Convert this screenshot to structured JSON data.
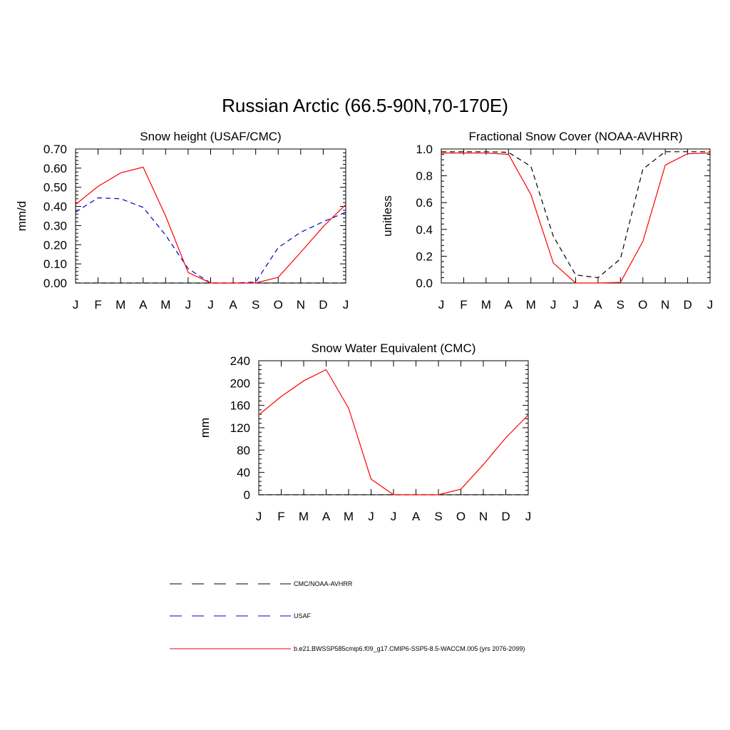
{
  "figure": {
    "title": "Russian Arctic (66.5-90N,70-170E)"
  },
  "legend": {
    "items": [
      {
        "label": "CMC/NOAA-AVHRR",
        "color": "#000000",
        "style": "dashed"
      },
      {
        "label": "USAF",
        "color": "#0000cc",
        "style": "dashed"
      },
      {
        "label": "b.e21.BWSSP585cmip6.f09_g17.CMIP6-SSP5-8.5-WACCM.005 (yrs 2076-2099)",
        "color": "#ff0000",
        "style": "solid"
      }
    ]
  },
  "chart_data": [
    {
      "type": "line",
      "title": "Snow height (USAF/CMC)",
      "xlabel": "",
      "ylabel": "mm/d",
      "categories": [
        "J",
        "F",
        "M",
        "A",
        "M",
        "J",
        "J",
        "A",
        "S",
        "O",
        "N",
        "D",
        "J"
      ],
      "ylim": [
        0,
        0.7
      ],
      "yticks": [
        "0.00",
        "0.10",
        "0.20",
        "0.30",
        "0.40",
        "0.50",
        "0.60",
        "0.70"
      ],
      "series": [
        {
          "name": "CMC/NOAA-AVHRR",
          "color": "#000000",
          "style": "dashed",
          "values": [
            0,
            0,
            0,
            0,
            0,
            0,
            0,
            0,
            0,
            0,
            0,
            0,
            0
          ]
        },
        {
          "name": "USAF",
          "color": "#0000cc",
          "style": "dashed",
          "values": [
            0.37,
            0.445,
            0.44,
            0.395,
            0.25,
            0.075,
            0,
            0,
            0.005,
            0.185,
            0.265,
            0.32,
            0.37
          ]
        },
        {
          "name": "b.e21.BWSSP585cmip6.f09_g17.CMIP6-SSP5-8.5-WACCM.005 (yrs 2076-2099)",
          "color": "#ff0000",
          "style": "solid",
          "values": [
            0.41,
            0.505,
            0.575,
            0.605,
            0.35,
            0.055,
            0,
            0,
            0,
            0.03,
            0.16,
            0.295,
            0.41
          ]
        }
      ]
    },
    {
      "type": "line",
      "title": "Fractional Snow Cover (NOAA-AVHRR)",
      "xlabel": "",
      "ylabel": "unitless",
      "categories": [
        "J",
        "F",
        "M",
        "A",
        "M",
        "J",
        "J",
        "A",
        "S",
        "O",
        "N",
        "D",
        "J"
      ],
      "ylim": [
        0,
        1.0
      ],
      "yticks": [
        "0.0",
        "0.2",
        "0.4",
        "0.6",
        "0.8",
        "1.0"
      ],
      "series": [
        {
          "name": "CMC/NOAA-AVHRR",
          "color": "#000000",
          "style": "dashed",
          "values": [
            0.98,
            0.98,
            0.98,
            0.975,
            0.87,
            0.35,
            0.06,
            0.04,
            0.18,
            0.85,
            0.98,
            0.98,
            0.98
          ]
        },
        {
          "name": "b.e21.BWSSP585cmip6.f09_g17.CMIP6-SSP5-8.5-WACCM.005 (yrs 2076-2099)",
          "color": "#ff0000",
          "style": "solid",
          "values": [
            0.97,
            0.97,
            0.97,
            0.96,
            0.66,
            0.15,
            0,
            0,
            0.005,
            0.31,
            0.88,
            0.965,
            0.97
          ]
        }
      ]
    },
    {
      "type": "line",
      "title": "Snow Water Equivalent (CMC)",
      "xlabel": "",
      "ylabel": "mm",
      "categories": [
        "J",
        "F",
        "M",
        "A",
        "M",
        "J",
        "J",
        "A",
        "S",
        "O",
        "N",
        "D",
        "J"
      ],
      "ylim": [
        0,
        240
      ],
      "yticks": [
        "0",
        "40",
        "80",
        "120",
        "160",
        "200",
        "240"
      ],
      "series": [
        {
          "name": "CMC/NOAA-AVHRR",
          "color": "#000000",
          "style": "dashed",
          "values": [
            0,
            0,
            0,
            0,
            0,
            0,
            0,
            0,
            0,
            0,
            0,
            0,
            0
          ]
        },
        {
          "name": "b.e21.BWSSP585cmip6.f09_g17.CMIP6-SSP5-8.5-WACCM.005 (yrs 2076-2099)",
          "color": "#ff0000",
          "style": "solid",
          "values": [
            143,
            176,
            204,
            224,
            155,
            28,
            0,
            0,
            0,
            10,
            54,
            102,
            143
          ]
        }
      ]
    }
  ]
}
